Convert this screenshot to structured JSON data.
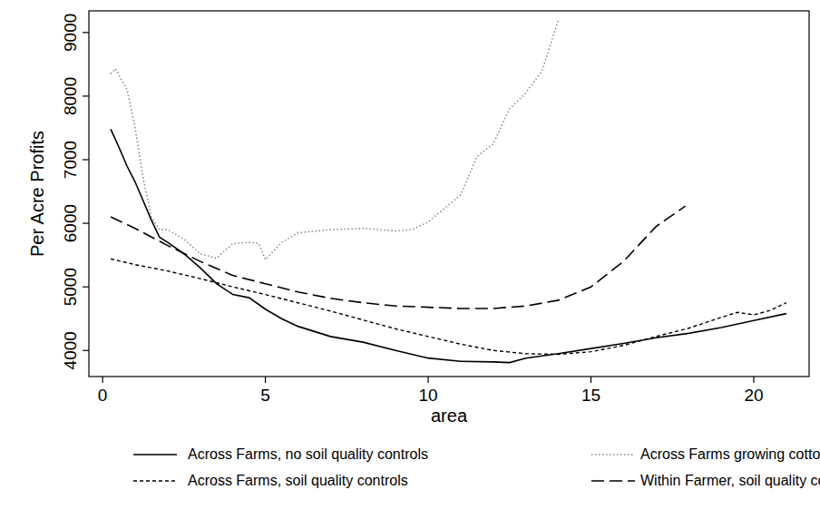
{
  "chart_data": {
    "type": "line",
    "x_label": "area",
    "y_label": "Per Acre Profits",
    "xlim": [
      -0.42,
      21.7
    ],
    "ylim": [
      3590,
      9340
    ],
    "xticks": [
      0,
      5,
      10,
      15,
      20
    ],
    "yticks": [
      4000,
      5000,
      6000,
      7000,
      8000,
      9000
    ],
    "grid": false,
    "legend": "bottom",
    "series": [
      {
        "name": "Across Farms, no soil quality controls",
        "color": "#000000",
        "line_style": "solid",
        "x": [
          0.25,
          0.5,
          0.75,
          1,
          1.25,
          1.5,
          1.75,
          2,
          2.5,
          3,
          3.5,
          4,
          4.5,
          5,
          5.5,
          6,
          7,
          8,
          9,
          10,
          11,
          12,
          12.5,
          13,
          14,
          15,
          16,
          17,
          18,
          19,
          20,
          21
        ],
        "values": [
          7480,
          7200,
          6900,
          6650,
          6350,
          6050,
          5780,
          5700,
          5520,
          5300,
          5050,
          4880,
          4830,
          4650,
          4500,
          4380,
          4220,
          4130,
          4000,
          3880,
          3830,
          3820,
          3810,
          3880,
          3950,
          4030,
          4110,
          4200,
          4270,
          4360,
          4470,
          4580
        ]
      },
      {
        "name": "Across Farms growing cotton only",
        "color": "#8c8c8c",
        "line_style": "dotted",
        "x": [
          0.25,
          0.4,
          0.75,
          1,
          1.25,
          1.5,
          1.75,
          2,
          2.5,
          3,
          3.5,
          4,
          4.5,
          4.8,
          5,
          5.5,
          6,
          7,
          8,
          9,
          9.5,
          10,
          11,
          11.5,
          12,
          12.5,
          13,
          13.5,
          14
        ],
        "values": [
          8350,
          8430,
          8100,
          7500,
          6700,
          6100,
          5900,
          5900,
          5750,
          5520,
          5450,
          5680,
          5700,
          5680,
          5430,
          5700,
          5850,
          5900,
          5920,
          5880,
          5900,
          6020,
          6450,
          7050,
          7250,
          7800,
          8050,
          8400,
          9200
        ]
      },
      {
        "name": "Across Farms, soil quality controls",
        "color": "#000000",
        "line_style": "dashed",
        "x": [
          0.25,
          1,
          2,
          3,
          4,
          5,
          6,
          7,
          8,
          9,
          10,
          11,
          12,
          13,
          14,
          15,
          16,
          17,
          18,
          19,
          19.5,
          20,
          20.5,
          21
        ],
        "values": [
          5440,
          5350,
          5250,
          5130,
          5000,
          4880,
          4750,
          4620,
          4480,
          4340,
          4220,
          4100,
          4000,
          3950,
          3940,
          3980,
          4080,
          4220,
          4350,
          4520,
          4600,
          4560,
          4630,
          4750
        ]
      },
      {
        "name": "Within Farmer, soil quality controls",
        "color": "#000000",
        "line_style": "longdash",
        "x": [
          0.25,
          1,
          2,
          3,
          4,
          5,
          6,
          7,
          8,
          9,
          10,
          11,
          12,
          13,
          14,
          15,
          16,
          17,
          17.9
        ],
        "values": [
          6100,
          5920,
          5650,
          5400,
          5180,
          5050,
          4920,
          4820,
          4750,
          4700,
          4680,
          4660,
          4660,
          4700,
          4790,
          5000,
          5400,
          5950,
          6270
        ]
      }
    ]
  }
}
